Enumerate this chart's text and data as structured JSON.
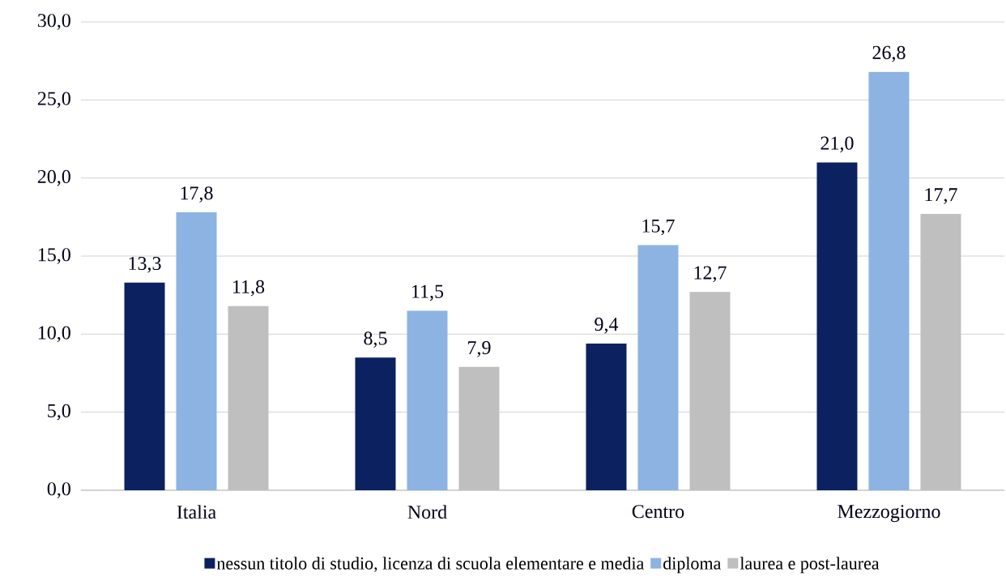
{
  "chart_data": {
    "type": "bar",
    "categories": [
      "Italia",
      "Nord",
      "Centro",
      "Mezzogiorno"
    ],
    "series": [
      {
        "name": "nessun titolo di studio, licenza di scuola elementare e media",
        "color": "#0b2160",
        "values": [
          13.3,
          8.5,
          9.4,
          21.0
        ],
        "value_labels": [
          "13,3",
          "8,5",
          "9,4",
          "21,0"
        ]
      },
      {
        "name": "diploma",
        "color": "#8db3e2",
        "values": [
          17.8,
          11.5,
          15.7,
          26.8
        ],
        "value_labels": [
          "17,8",
          "11,5",
          "15,7",
          "26,8"
        ]
      },
      {
        "name": "laurea e post-laurea",
        "color": "#bfbfbf",
        "values": [
          11.8,
          7.9,
          12.7,
          17.7
        ],
        "value_labels": [
          "11,8",
          "7,9",
          "12,7",
          "17,7"
        ]
      }
    ],
    "ylim": [
      0,
      30
    ],
    "yticks": [
      {
        "value": 0,
        "label": "0,0"
      },
      {
        "value": 5,
        "label": "5,0"
      },
      {
        "value": 10,
        "label": "10,0"
      },
      {
        "value": 15,
        "label": "15,0"
      },
      {
        "value": 20,
        "label": "20,0"
      },
      {
        "value": 25,
        "label": "25,0"
      },
      {
        "value": 30,
        "label": "30,0"
      }
    ],
    "grid": "y",
    "legend": "bottom"
  }
}
